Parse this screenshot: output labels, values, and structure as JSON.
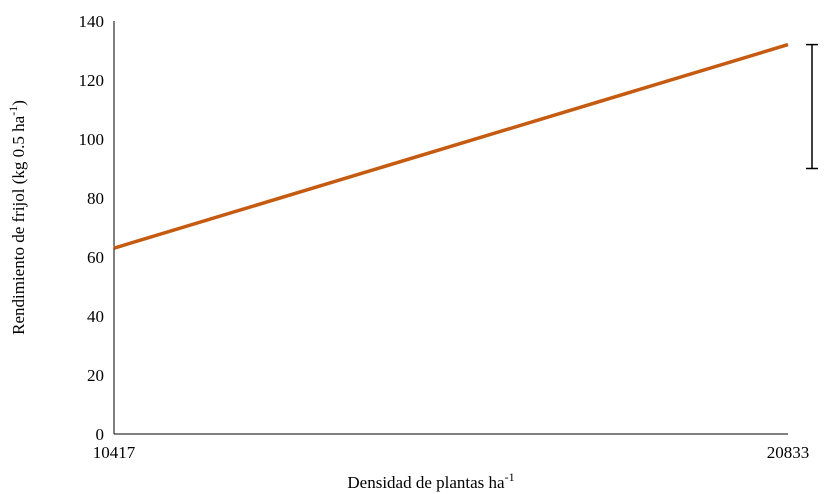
{
  "chart_data": {
    "type": "line",
    "x": [
      10417,
      20833
    ],
    "series": [
      {
        "values": [
          63,
          132
        ],
        "color": "#c55a11"
      }
    ],
    "xlabel": {
      "main": "Densidad de plantas ha",
      "sup": "-1"
    },
    "ylabel": {
      "main": "Rendimiento de frijol (kg  0.5 ha",
      "sup": "-1",
      "close": ")"
    },
    "ylim": [
      0,
      140
    ],
    "yticks": [
      0,
      20,
      40,
      60,
      80,
      100,
      120,
      140
    ],
    "xticks": [
      10417,
      20833
    ],
    "error_bar": {
      "x": 20833,
      "low": 90,
      "high": 132
    },
    "grid": false
  }
}
